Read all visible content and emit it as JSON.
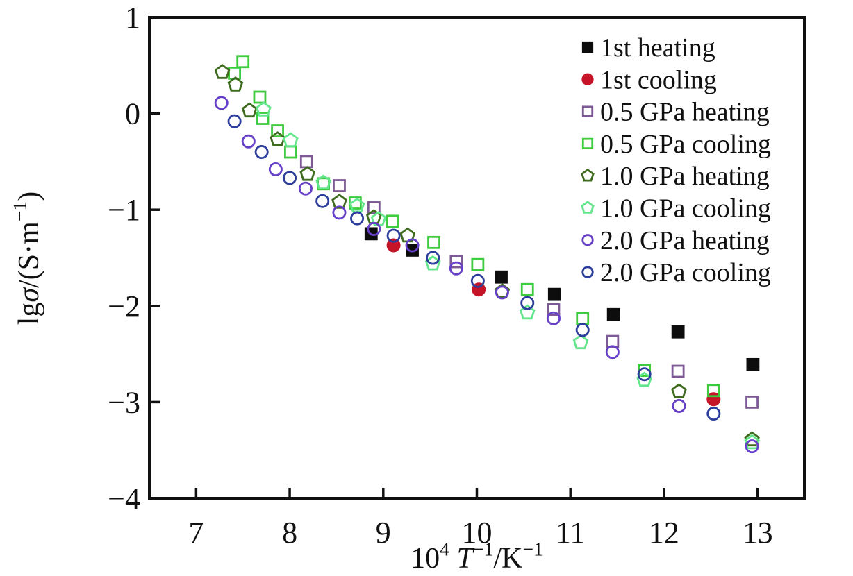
{
  "figure": {
    "background": "#ffffff",
    "frame_color": "#111111"
  },
  "chart_data": {
    "type": "scatter",
    "title": "",
    "xlabel_parts": [
      {
        "text": "10"
      },
      {
        "text": "4",
        "sup": true
      },
      {
        "text": " "
      },
      {
        "text": "T",
        "italic": true
      },
      {
        "text": "−1",
        "sup": true
      },
      {
        "text": "/K"
      },
      {
        "text": "−1",
        "sup": true
      }
    ],
    "ylabel_parts": [
      {
        "text": "lg"
      },
      {
        "text": "σ",
        "italic": true
      },
      {
        "text": "/(S·m"
      },
      {
        "text": "−1",
        "sup": true
      },
      {
        "text": ")"
      }
    ],
    "xlim": [
      6.5,
      13.5
    ],
    "ylim": [
      -4,
      1
    ],
    "xticks": [
      7,
      8,
      9,
      10,
      11,
      12,
      13
    ],
    "yticks": [
      1,
      0,
      -1,
      -2,
      -3,
      -4
    ],
    "grid": false,
    "legend_position": "top-right-inside",
    "series": [
      {
        "name": "1st heating",
        "marker": "square",
        "fill": "filled",
        "color": "#0d0d0d",
        "points": [
          [
            8.87,
            -1.25
          ],
          [
            9.31,
            -1.42
          ],
          [
            10.26,
            -1.7
          ],
          [
            10.83,
            -1.88
          ],
          [
            11.46,
            -2.09
          ],
          [
            12.15,
            -2.27
          ],
          [
            12.95,
            -2.61
          ]
        ]
      },
      {
        "name": "1st cooling",
        "marker": "circle",
        "fill": "filled",
        "color": "#c51327",
        "points": [
          [
            9.11,
            -1.37
          ],
          [
            10.02,
            -1.83
          ],
          [
            12.53,
            -2.97
          ]
        ]
      },
      {
        "name": "0.5 GPa heating",
        "marker": "square",
        "fill": "open",
        "color": "#7d5a96",
        "points": [
          [
            8.18,
            -0.5
          ],
          [
            8.53,
            -0.75
          ],
          [
            8.9,
            -0.98
          ],
          [
            9.78,
            -1.54
          ],
          [
            10.82,
            -2.04
          ],
          [
            11.45,
            -2.37
          ],
          [
            12.15,
            -2.68
          ],
          [
            12.94,
            -3.0
          ]
        ]
      },
      {
        "name": "0.5 GPa cooling",
        "marker": "square",
        "fill": "open",
        "color": "#3ecc3e",
        "points": [
          [
            7.41,
            0.42
          ],
          [
            7.5,
            0.54
          ],
          [
            7.68,
            0.17
          ],
          [
            7.71,
            -0.05
          ],
          [
            7.87,
            -0.18
          ],
          [
            8.01,
            -0.4
          ],
          [
            8.36,
            -0.73
          ],
          [
            8.7,
            -0.93
          ],
          [
            9.1,
            -1.12
          ],
          [
            9.54,
            -1.34
          ],
          [
            10.01,
            -1.57
          ],
          [
            10.54,
            -1.83
          ],
          [
            11.13,
            -2.13
          ],
          [
            11.79,
            -2.67
          ],
          [
            12.53,
            -2.88
          ]
        ]
      },
      {
        "name": "1.0 GPa heating",
        "marker": "pentagon",
        "fill": "open",
        "color": "#3f6b1e",
        "points": [
          [
            7.28,
            0.43
          ],
          [
            7.42,
            0.3
          ],
          [
            7.57,
            0.03
          ],
          [
            7.87,
            -0.27
          ],
          [
            8.19,
            -0.63
          ],
          [
            8.53,
            -0.92
          ],
          [
            8.9,
            -1.08
          ],
          [
            9.26,
            -1.27
          ],
          [
            10.27,
            -1.85
          ],
          [
            12.16,
            -2.89
          ],
          [
            12.94,
            -3.39
          ]
        ]
      },
      {
        "name": "1.0 GPa cooling",
        "marker": "pentagon",
        "fill": "open",
        "color": "#63e68c",
        "points": [
          [
            7.72,
            0.04
          ],
          [
            8.01,
            -0.28
          ],
          [
            8.36,
            -0.72
          ],
          [
            8.72,
            -0.96
          ],
          [
            8.95,
            -1.1
          ],
          [
            9.53,
            -1.56
          ],
          [
            10.54,
            -2.07
          ],
          [
            11.11,
            -2.38
          ],
          [
            11.79,
            -2.77
          ],
          [
            12.94,
            -3.42
          ]
        ]
      },
      {
        "name": "2.0 GPa heating",
        "marker": "circle",
        "fill": "open",
        "color": "#6640c8",
        "points": [
          [
            7.27,
            0.11
          ],
          [
            7.56,
            -0.29
          ],
          [
            7.85,
            -0.58
          ],
          [
            8.17,
            -0.78
          ],
          [
            8.53,
            -1.03
          ],
          [
            8.9,
            -1.2
          ],
          [
            9.31,
            -1.37
          ],
          [
            9.78,
            -1.61
          ],
          [
            10.27,
            -1.86
          ],
          [
            10.82,
            -2.13
          ],
          [
            11.45,
            -2.48
          ],
          [
            12.16,
            -3.04
          ],
          [
            12.94,
            -3.46
          ]
        ]
      },
      {
        "name": "2.0 GPa cooling",
        "marker": "circle",
        "fill": "open",
        "color": "#2c3d9b",
        "points": [
          [
            7.41,
            -0.08
          ],
          [
            7.7,
            -0.4
          ],
          [
            8.0,
            -0.67
          ],
          [
            8.35,
            -0.91
          ],
          [
            8.72,
            -1.09
          ],
          [
            9.11,
            -1.27
          ],
          [
            9.53,
            -1.5
          ],
          [
            10.01,
            -1.74
          ],
          [
            10.54,
            -1.97
          ],
          [
            11.13,
            -2.25
          ],
          [
            11.79,
            -2.71
          ],
          [
            12.53,
            -3.12
          ]
        ]
      }
    ]
  }
}
